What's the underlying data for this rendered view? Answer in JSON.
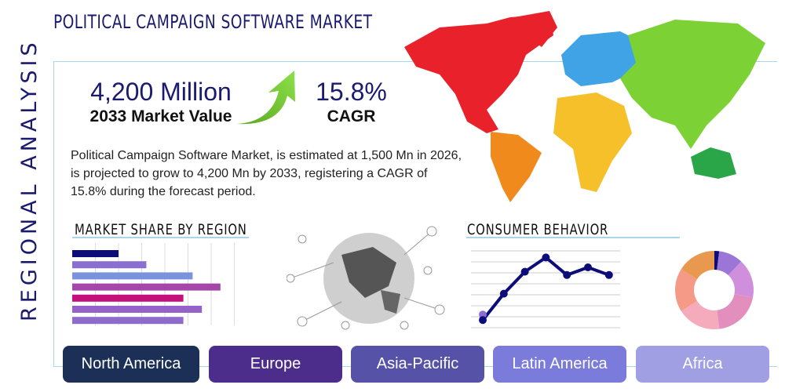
{
  "title": "POLITICAL CAMPAIGN SOFTWARE MARKET",
  "side_label": "REGIONAL ANALYSIS",
  "market_value": {
    "value": "4,200 Million",
    "label": "2033 Market Value"
  },
  "cagr": {
    "value": "15.8%",
    "label": "CAGR"
  },
  "description": "Political Campaign Software Market, is estimated at 1,500 Mn in 2026, is projected to grow to 4,200 Mn by 2033, registering a CAGR of 15.8% during the forecast period.",
  "sections": {
    "market_share": "MARKET SHARE BY REGION",
    "consumer": "CONSUMER BEHAVIOR"
  },
  "tabs": [
    {
      "label": "North America",
      "color": "#1c2f57"
    },
    {
      "label": "Europe",
      "color": "#4d2d8c"
    },
    {
      "label": "Asia-Pacific",
      "color": "#5552a8"
    },
    {
      "label": "Latin America",
      "color": "#7b7bdc"
    },
    {
      "label": "Africa",
      "color": "#a09fe3"
    }
  ],
  "chart_data": [
    {
      "type": "bar",
      "orientation": "horizontal",
      "values": [
        2,
        3.2,
        5.2,
        6.4,
        4.8,
        5.6,
        4.8
      ],
      "colors": [
        "#0d0d7a",
        "#8b6fd0",
        "#7b93dc",
        "#a447a8",
        "#c4107a",
        "#9462c8",
        "#8e6ccc"
      ],
      "xlim": [
        0,
        7
      ],
      "grid": true
    },
    {
      "type": "line",
      "values": [
        0.7,
        3.1,
        5.1,
        6.4,
        4.8,
        5.5,
        4.8
      ],
      "extra_point": 1.2,
      "ylim": [
        0,
        7
      ],
      "color": "#0d0d7a",
      "grid": true
    },
    {
      "type": "pie",
      "donut": true,
      "values": [
        2,
        10,
        16,
        20,
        18,
        18,
        16
      ],
      "colors": [
        "#0d0d7a",
        "#9b76d6",
        "#cf8fdc",
        "#e28fbe",
        "#f6abbc",
        "#f59a86",
        "#e8984f"
      ]
    }
  ],
  "map_colors": {
    "north_america": "#e8212b",
    "south_america": "#f08a1c",
    "europe": "#3fa3e6",
    "asia": "#7cd134",
    "africa": "#f5c02a",
    "oceania": "#2aa547"
  }
}
